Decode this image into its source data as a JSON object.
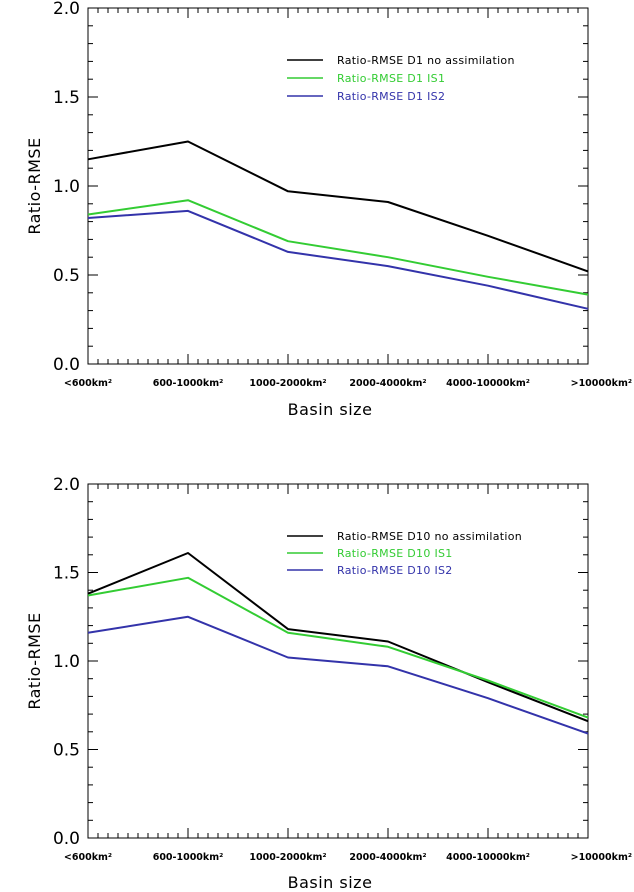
{
  "chart_data": [
    {
      "type": "line",
      "categories": [
        "<600km²",
        "600-1000km²",
        "1000-2000km²",
        "2000-4000km²",
        "4000-10000km²",
        ">10000km²"
      ],
      "x": [
        0,
        1,
        2,
        3,
        4,
        5
      ],
      "series": [
        {
          "name": "Ratio-RMSE D1 no assimilation",
          "color": "#000000",
          "values": [
            1.15,
            1.25,
            0.97,
            0.91,
            0.72,
            0.52
          ]
        },
        {
          "name": "Ratio-RMSE D1 IS1",
          "color": "#33cc33",
          "values": [
            0.84,
            0.92,
            0.69,
            0.6,
            0.49,
            0.39
          ]
        },
        {
          "name": "Ratio-RMSE D1 IS2",
          "color": "#3333aa",
          "values": [
            0.82,
            0.86,
            0.63,
            0.55,
            0.44,
            0.31
          ]
        }
      ],
      "xlabel": "Basin size",
      "ylabel": "Ratio-RMSE",
      "ylim": [
        0,
        2.0
      ],
      "yticks": [
        "0.0",
        "0.5",
        "1.0",
        "1.5",
        "2.0"
      ],
      "legend_position": "top-right",
      "grid": false
    },
    {
      "type": "line",
      "categories": [
        "<600km²",
        "600-1000km²",
        "1000-2000km²",
        "2000-4000km²",
        "4000-10000km²",
        ">10000km²"
      ],
      "x": [
        0,
        1,
        2,
        3,
        4,
        5
      ],
      "series": [
        {
          "name": "Ratio-RMSE D10 no assimilation",
          "color": "#000000",
          "values": [
            1.38,
            1.61,
            1.18,
            1.11,
            0.88,
            0.66
          ]
        },
        {
          "name": "Ratio-RMSE D10 IS1",
          "color": "#33cc33",
          "values": [
            1.37,
            1.47,
            1.16,
            1.08,
            0.89,
            0.68
          ]
        },
        {
          "name": "Ratio-RMSE D10 IS2",
          "color": "#3333aa",
          "values": [
            1.16,
            1.25,
            1.02,
            0.97,
            0.79,
            0.59
          ]
        }
      ],
      "xlabel": "Basin size",
      "ylabel": "Ratio-RMSE",
      "ylim": [
        0,
        2.0
      ],
      "yticks": [
        "0.0",
        "0.5",
        "1.0",
        "1.5",
        "2.0"
      ],
      "legend_position": "top-right",
      "grid": false
    }
  ]
}
